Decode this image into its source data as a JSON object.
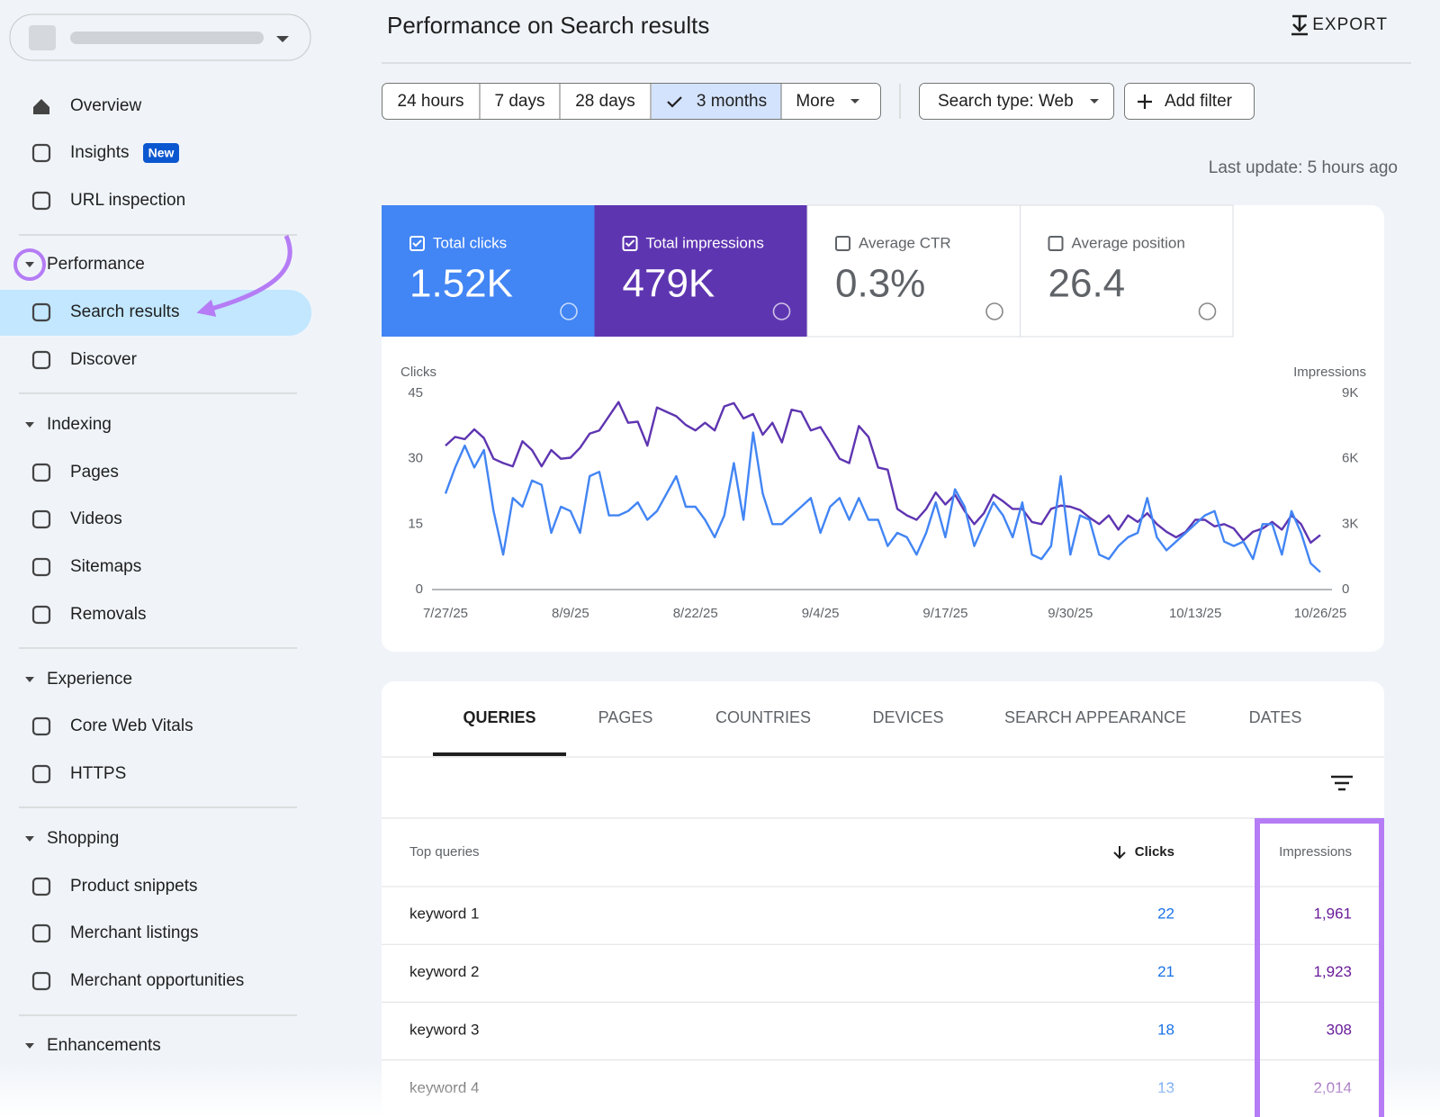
{
  "sidebar": {
    "nav": [
      {
        "label": "Overview"
      },
      {
        "label": "Insights",
        "badge": "New"
      },
      {
        "label": "URL inspection"
      }
    ],
    "sections": [
      {
        "title": "Performance",
        "items": [
          "Search results",
          "Discover"
        ]
      },
      {
        "title": "Indexing",
        "items": [
          "Pages",
          "Videos",
          "Sitemaps",
          "Removals"
        ]
      },
      {
        "title": "Experience",
        "items": [
          "Core Web Vitals",
          "HTTPS"
        ]
      },
      {
        "title": "Shopping",
        "items": [
          "Product snippets",
          "Merchant listings",
          "Merchant opportunities"
        ]
      },
      {
        "title": "Enhancements"
      }
    ]
  },
  "header": {
    "title": "Performance on Search results",
    "export": "EXPORT"
  },
  "filters": {
    "ranges": [
      "24 hours",
      "7 days",
      "28 days",
      "3 months",
      "More"
    ],
    "search_type": "Search type: Web",
    "add_filter": "Add filter",
    "last_update": "Last update: 5 hours ago"
  },
  "metrics": [
    {
      "label": "Total clicks",
      "value": "1.52K"
    },
    {
      "label": "Total impressions",
      "value": "479K"
    },
    {
      "label": "Average CTR",
      "value": "0.3%"
    },
    {
      "label": "Average position",
      "value": "26.4"
    }
  ],
  "chart_data": {
    "type": "line",
    "ylabel": "Clicks",
    "y2label": "Impressions",
    "x": [
      "7/27/25",
      "7/28/25",
      "7/29/25",
      "7/30/25",
      "7/31/25",
      "8/1/25",
      "8/2/25",
      "8/3/25",
      "8/4/25",
      "8/5/25",
      "8/6/25",
      "8/7/25",
      "8/8/25",
      "8/9/25",
      "8/10/25",
      "8/11/25",
      "8/12/25",
      "8/13/25",
      "8/14/25",
      "8/15/25",
      "8/16/25",
      "8/17/25",
      "8/18/25",
      "8/19/25",
      "8/20/25",
      "8/21/25",
      "8/22/25",
      "8/23/25",
      "8/24/25",
      "8/25/25",
      "8/26/25",
      "8/27/25",
      "8/28/25",
      "8/29/25",
      "8/30/25",
      "8/31/25",
      "9/1/25",
      "9/2/25",
      "9/3/25",
      "9/4/25",
      "9/5/25",
      "9/6/25",
      "9/7/25",
      "9/8/25",
      "9/9/25",
      "9/10/25",
      "9/11/25",
      "9/12/25",
      "9/13/25",
      "9/14/25",
      "9/15/25",
      "9/16/25",
      "9/17/25",
      "9/18/25",
      "9/19/25",
      "9/20/25",
      "9/21/25",
      "9/22/25",
      "9/23/25",
      "9/24/25",
      "9/25/25",
      "9/26/25",
      "9/27/25",
      "9/28/25",
      "9/29/25",
      "9/30/25",
      "10/1/25",
      "10/2/25",
      "10/3/25",
      "10/4/25",
      "10/5/25",
      "10/6/25",
      "10/7/25",
      "10/8/25",
      "10/9/25",
      "10/10/25",
      "10/11/25",
      "10/12/25",
      "10/13/25",
      "10/14/25",
      "10/15/25",
      "10/16/25",
      "10/17/25",
      "10/18/25",
      "10/19/25",
      "10/20/25",
      "10/21/25",
      "10/22/25",
      "10/23/25",
      "10/24/25",
      "10/25/25",
      "10/26/25"
    ],
    "xticks": [
      "7/27/25",
      "8/9/25",
      "8/22/25",
      "9/4/25",
      "9/17/25",
      "9/30/25",
      "10/13/25",
      "10/26/25"
    ],
    "ylim": [
      0,
      45
    ],
    "yticks": [
      0,
      15,
      30,
      45
    ],
    "y2lim": [
      0,
      9000
    ],
    "y2ticks": [
      0,
      {
        "value": 3000,
        "label": "3K"
      },
      {
        "value": 6000,
        "label": "6K"
      },
      {
        "value": 9000,
        "label": "9K"
      }
    ],
    "grid": false,
    "series": [
      {
        "name": "Clicks",
        "color": "#4285f4",
        "values": [
          22,
          28,
          33,
          28,
          32,
          18,
          8,
          21,
          19,
          25,
          24,
          13,
          19,
          18,
          13,
          26,
          27,
          17,
          17,
          18,
          20,
          16,
          18,
          22,
          26,
          19,
          19,
          16,
          12,
          17,
          29,
          16,
          36,
          22,
          15,
          15,
          17,
          19,
          21,
          13,
          19,
          21,
          16,
          21,
          16,
          16,
          10,
          13,
          12,
          8,
          13,
          20,
          12,
          23,
          19,
          10,
          15,
          20,
          17,
          12,
          20,
          8,
          7,
          10,
          26,
          8,
          17,
          16,
          8,
          7,
          10,
          12,
          13,
          21,
          12,
          9,
          11,
          13,
          15,
          17,
          18,
          11,
          10,
          11,
          7,
          15,
          15,
          8,
          18,
          13,
          6,
          4
        ]
      },
      {
        "name": "Impressions",
        "color": "#5e35b1",
        "axis": "y2",
        "values": [
          6600,
          7000,
          6900,
          7350,
          6950,
          6000,
          5800,
          5650,
          6800,
          6400,
          5650,
          6400,
          6000,
          6050,
          6500,
          7150,
          7300,
          7950,
          8600,
          7650,
          7700,
          6600,
          8350,
          8150,
          7950,
          7550,
          7300,
          7650,
          7300,
          8400,
          8550,
          7850,
          8050,
          7100,
          7650,
          6750,
          8250,
          8150,
          7300,
          7450,
          6750,
          6000,
          5800,
          7500,
          7000,
          5600,
          5500,
          3700,
          3400,
          3200,
          3700,
          4450,
          3900,
          4350,
          3600,
          3000,
          3500,
          4350,
          4050,
          3700,
          3700,
          3100,
          3000,
          3700,
          3850,
          3800,
          3650,
          3300,
          3000,
          3400,
          2750,
          3400,
          3100,
          3500,
          3000,
          2650,
          2400,
          2650,
          3200,
          3200,
          2900,
          3000,
          2800,
          2250,
          2650,
          2800,
          3100,
          2750,
          3400,
          3000,
          2150,
          2500
        ]
      }
    ]
  },
  "tabs": [
    "QUERIES",
    "PAGES",
    "COUNTRIES",
    "DEVICES",
    "SEARCH APPEARANCE",
    "DATES"
  ],
  "table": {
    "headers": [
      "Top queries",
      "Clicks",
      "Impressions"
    ],
    "rows": [
      [
        "keyword 1",
        "22",
        "1,961"
      ],
      [
        "keyword 2",
        "21",
        "1,923"
      ],
      [
        "keyword 3",
        "18",
        "308"
      ],
      [
        "keyword 4",
        "13",
        "2,014"
      ]
    ]
  }
}
